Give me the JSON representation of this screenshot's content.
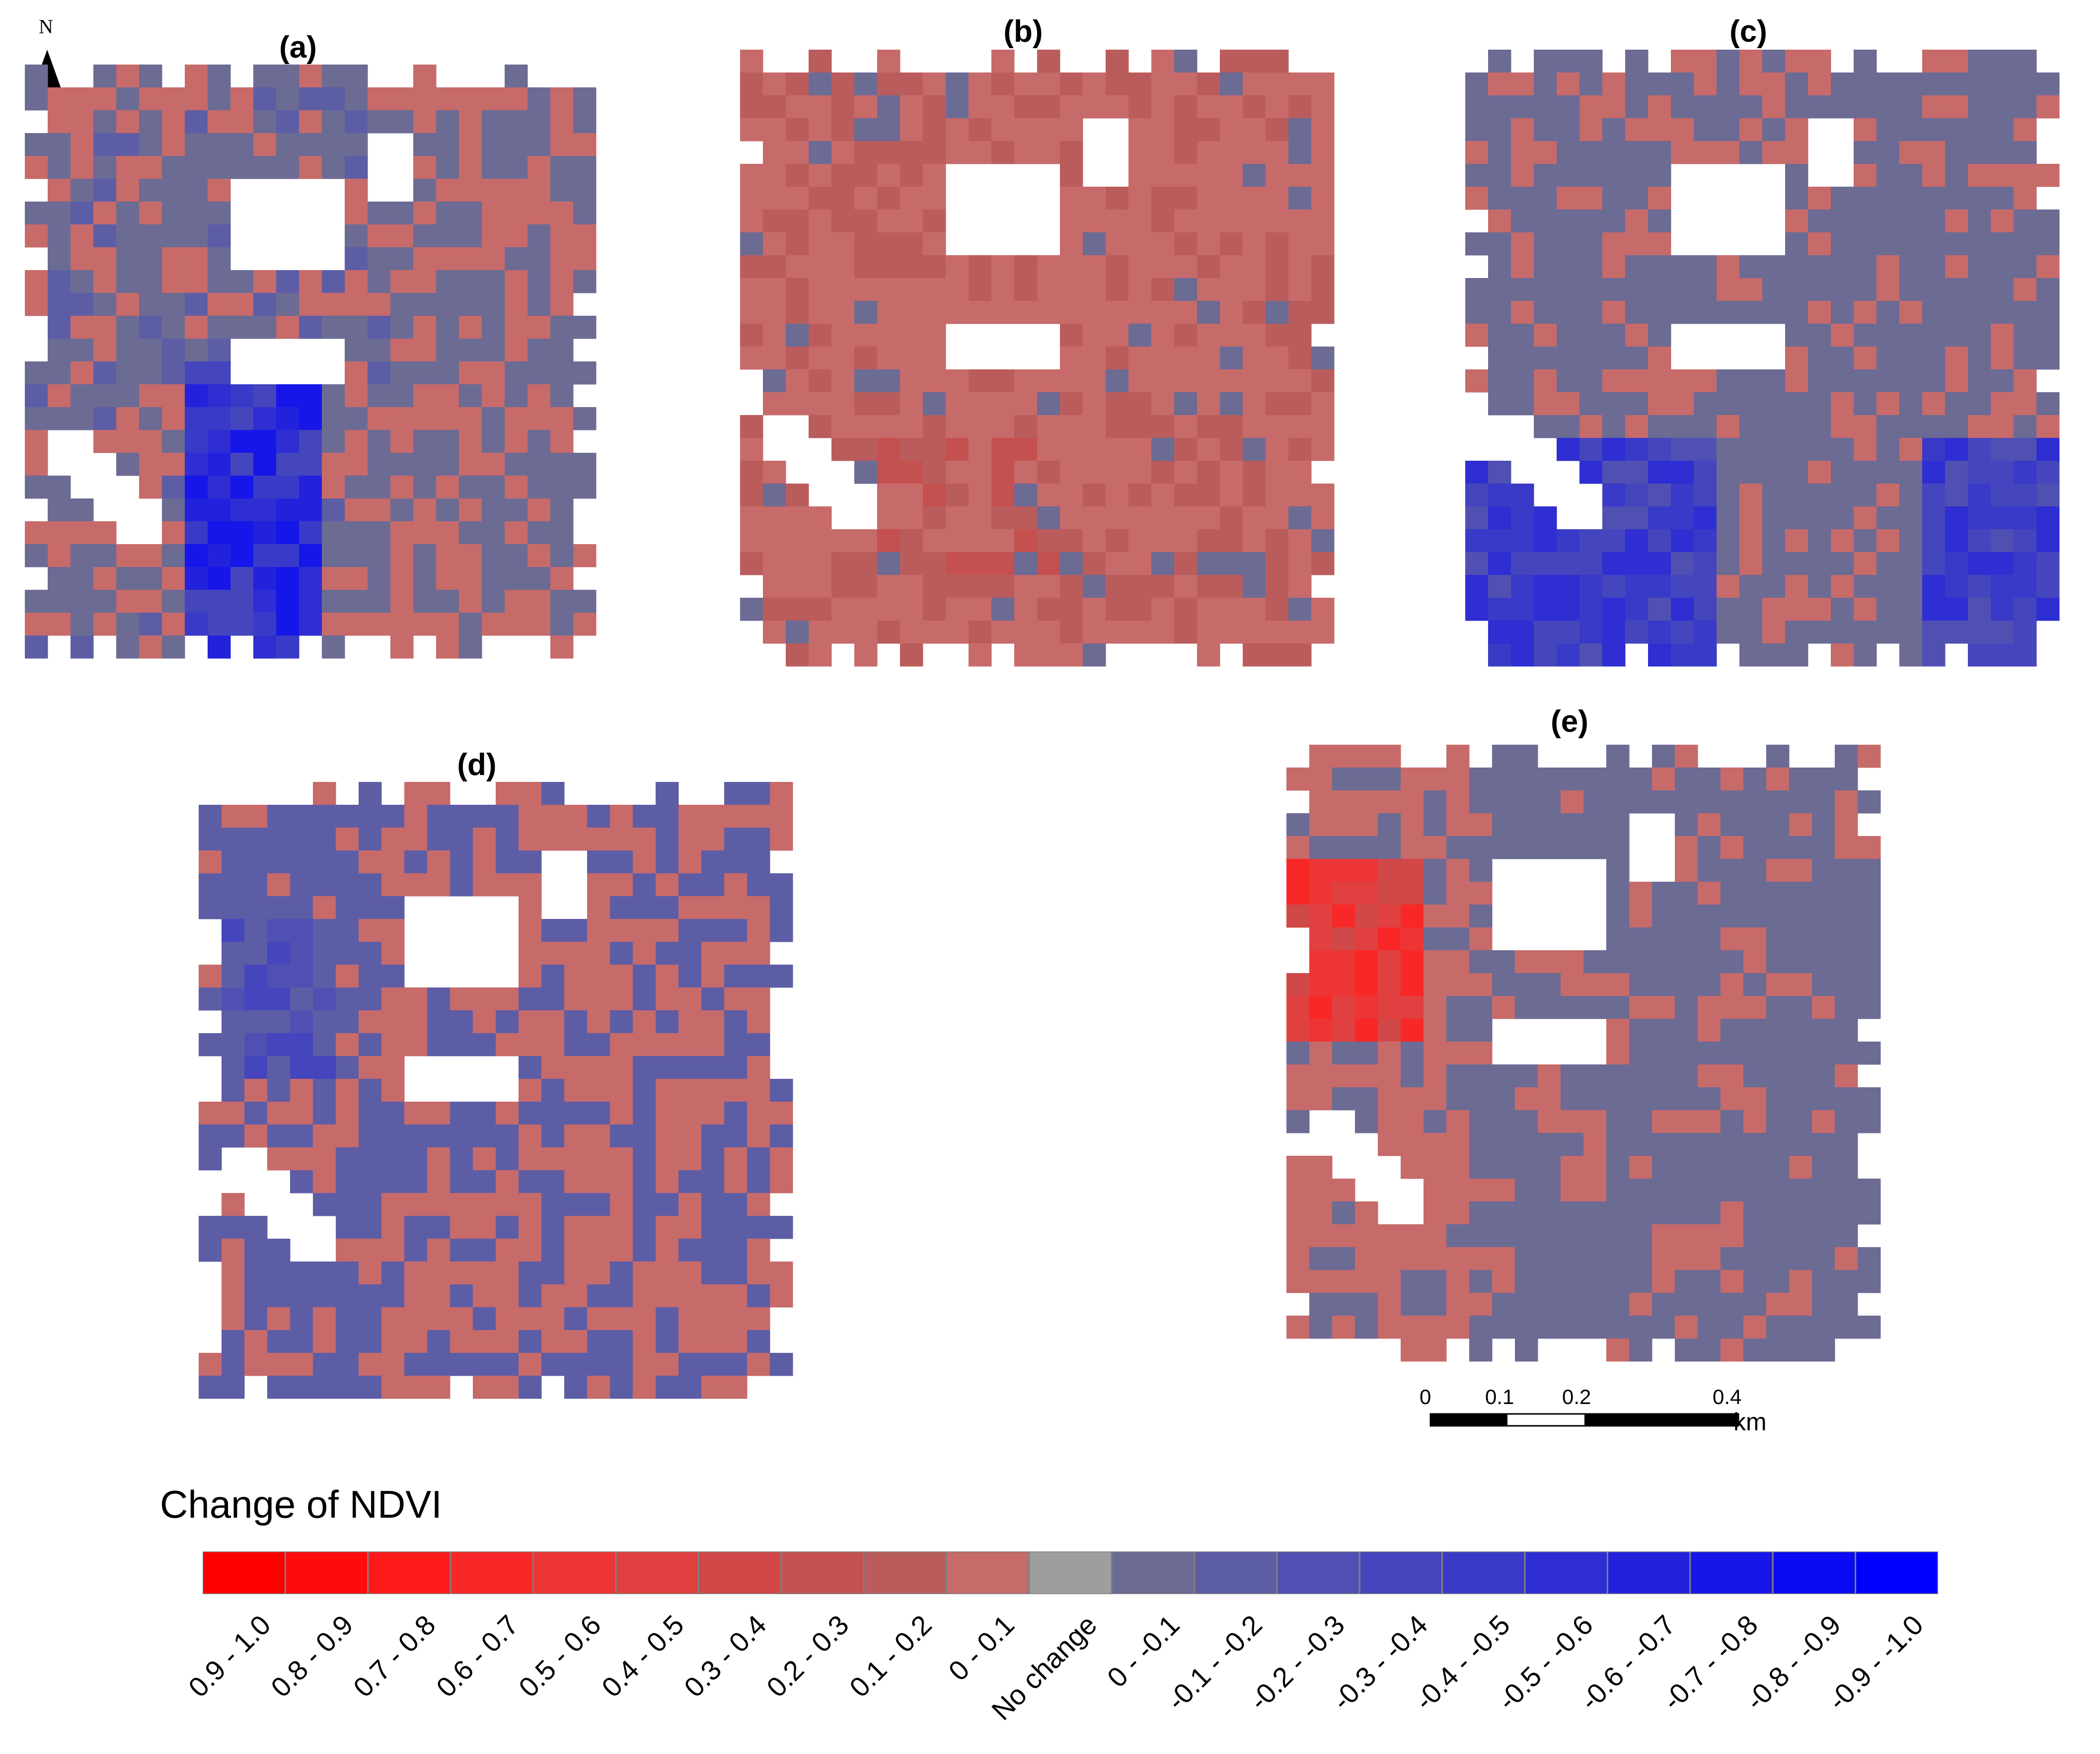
{
  "panels": [
    {
      "label": "(a)",
      "dominant": "mixed-blue-red"
    },
    {
      "label": "(b)",
      "dominant": "red"
    },
    {
      "label": "(c)",
      "dominant": "blue-grey"
    },
    {
      "label": "(d)",
      "dominant": "mixed"
    },
    {
      "label": "(e)",
      "dominant": "blue-grey"
    }
  ],
  "north_arrow": {
    "letter": "N"
  },
  "scale_bar": {
    "ticks": [
      "0",
      "0.1",
      "0.2",
      "0.4"
    ],
    "unit": "km"
  },
  "legend": {
    "title": "Change of NDVI",
    "classes": [
      {
        "label": "0.9 - 1.0",
        "color": "#ff0000"
      },
      {
        "label": "0.8 - 0.9",
        "color": "#fe0b0b"
      },
      {
        "label": "0.7 - 0.8",
        "color": "#fc1a1a"
      },
      {
        "label": "0.6 - 0.7",
        "color": "#f82828"
      },
      {
        "label": "0.5 - 0.6",
        "color": "#ee3535"
      },
      {
        "label": "0.4 - 0.5",
        "color": "#e04040"
      },
      {
        "label": "0.3 - 0.4",
        "color": "#d14848"
      },
      {
        "label": "0.2 - 0.3",
        "color": "#c45050"
      },
      {
        "label": "0.1 - 0.2",
        "color": "#bb5c5c"
      },
      {
        "label": "0 - 0.1",
        "color": "#c76a6a"
      },
      {
        "label": "No change",
        "color": "#9e9e9e"
      },
      {
        "label": "0 - -0.1",
        "color": "#6b6b94"
      },
      {
        "label": "-0.1 - -0.2",
        "color": "#5d5da6"
      },
      {
        "label": "-0.2 - -0.3",
        "color": "#5050b3"
      },
      {
        "label": "-0.3 - -0.4",
        "color": "#4545be"
      },
      {
        "label": "-0.4 - -0.5",
        "color": "#3a3ac8"
      },
      {
        "label": "-0.5 - -0.6",
        "color": "#2e2ed2"
      },
      {
        "label": "-0.6 - -0.7",
        "color": "#2222dd"
      },
      {
        "label": "-0.7 - -0.8",
        "color": "#1616e8"
      },
      {
        "label": "-0.8 - -0.9",
        "color": "#0a0af3"
      },
      {
        "label": "-0.9 - -1.0",
        "color": "#0000ff"
      }
    ]
  }
}
